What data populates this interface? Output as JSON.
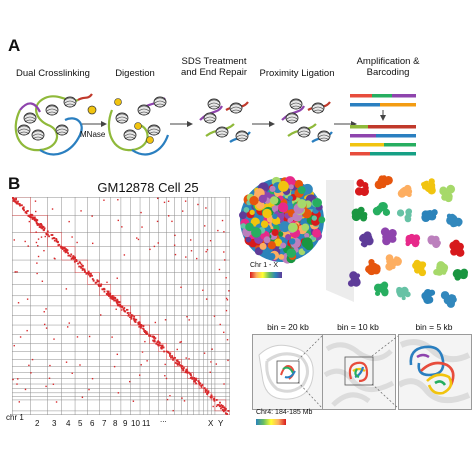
{
  "panel_a": {
    "letter": "A",
    "steps": [
      {
        "label_line1": "Dual Crosslinking",
        "label_line2": ""
      },
      {
        "label_line1": "Digestion",
        "label_line2": ""
      },
      {
        "label_line1": "SDS Treatment",
        "label_line2": "and End Repair"
      },
      {
        "label_line1": "Proximity Ligation",
        "label_line2": ""
      },
      {
        "label_line1": "Amplification &",
        "label_line2": "Barcoding"
      }
    ],
    "enzyme_label": "MNase"
  },
  "panel_b": {
    "letter": "B",
    "matrix_title": "GM12878 Cell 25",
    "x_axis_labels": [
      "chr 1",
      "2",
      "3",
      "4",
      "5",
      "6",
      "7",
      "8",
      "9",
      "10",
      "11",
      "X",
      "Y"
    ],
    "ellipsis": "...",
    "structure_legend": "Chr 1 - X",
    "bins": [
      "bin = 20 kb",
      "bin = 10 kb",
      "bin = 5 kb"
    ],
    "region_legend": "Chr4: 184-185 Mb",
    "colors": {
      "contact_red": "#d8282b",
      "grid_gray": "#8c8c8c",
      "arrow_gray": "#444444"
    }
  }
}
